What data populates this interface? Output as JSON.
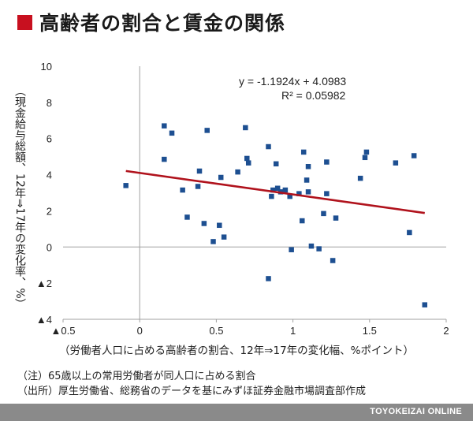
{
  "header": {
    "title": "高齢者の割合と賃金の関係",
    "marker_color": "#c8101f"
  },
  "chart_data": {
    "type": "scatter",
    "title": "高齢者の割合と賃金の関係",
    "xlabel": "（労働者人口に占める高齢者の割合、12年⇒17年の変化幅、%ポイント）",
    "ylabel": "（現金給与総額、12年⇒17年の変化率、%）",
    "xlim": [
      -0.5,
      2
    ],
    "ylim": [
      -4,
      10
    ],
    "x_ticks": [
      -0.5,
      0,
      0.5,
      1,
      1.5,
      2
    ],
    "x_tick_labels": [
      "▲0.5",
      "0",
      "0.5",
      "1",
      "1.5",
      "2"
    ],
    "y_ticks": [
      -4,
      -2,
      0,
      2,
      4,
      6,
      8,
      10
    ],
    "y_tick_labels": [
      "▲4",
      "▲2",
      "0",
      "2",
      "4",
      "6",
      "8",
      "10"
    ],
    "grid": false,
    "marker_color": "#1d4f91",
    "points": [
      [
        -0.09,
        3.4
      ],
      [
        0.16,
        6.7
      ],
      [
        0.16,
        4.85
      ],
      [
        0.21,
        6.3
      ],
      [
        0.28,
        3.15
      ],
      [
        0.31,
        1.65
      ],
      [
        0.38,
        3.35
      ],
      [
        0.39,
        4.2
      ],
      [
        0.42,
        1.3
      ],
      [
        0.44,
        6.45
      ],
      [
        0.48,
        0.3
      ],
      [
        0.52,
        1.2
      ],
      [
        0.53,
        3.85
      ],
      [
        0.55,
        0.55
      ],
      [
        0.64,
        4.15
      ],
      [
        0.69,
        6.6
      ],
      [
        0.7,
        4.9
      ],
      [
        0.71,
        4.65
      ],
      [
        0.84,
        5.55
      ],
      [
        0.86,
        2.8
      ],
      [
        0.87,
        3.15
      ],
      [
        0.89,
        4.6
      ],
      [
        0.9,
        3.25
      ],
      [
        0.92,
        3.05
      ],
      [
        0.95,
        3.15
      ],
      [
        0.98,
        2.8
      ],
      [
        0.99,
        -0.15
      ],
      [
        1.04,
        2.95
      ],
      [
        1.06,
        1.45
      ],
      [
        1.07,
        5.25
      ],
      [
        1.09,
        3.7
      ],
      [
        1.1,
        3.05
      ],
      [
        1.12,
        0.05
      ],
      [
        1.1,
        4.45
      ],
      [
        1.17,
        -0.1
      ],
      [
        1.2,
        1.85
      ],
      [
        1.22,
        2.95
      ],
      [
        1.22,
        4.7
      ],
      [
        1.26,
        -0.75
      ],
      [
        1.28,
        1.6
      ],
      [
        1.44,
        3.8
      ],
      [
        1.47,
        4.95
      ],
      [
        1.48,
        5.25
      ],
      [
        1.67,
        4.65
      ],
      [
        1.76,
        0.8
      ],
      [
        1.79,
        5.05
      ],
      [
        1.86,
        -3.2
      ],
      [
        0.84,
        -1.75
      ]
    ],
    "trendline": {
      "x_range": [
        -0.09,
        1.86
      ],
      "slope": -1.1924,
      "intercept": 4.0983,
      "color": "#b0121c",
      "equation": "y = -1.1924x + 4.0983",
      "r2": "R² = 0.05982"
    }
  },
  "notes": [
    "（注）65歳以上の常用労働者が同人口に占める割合",
    "（出所）厚生労働省、総務省のデータを基にみずほ証券金融市場調査部作成"
  ],
  "footer": {
    "brand": "TOYOKEIZAI ONLINE"
  }
}
